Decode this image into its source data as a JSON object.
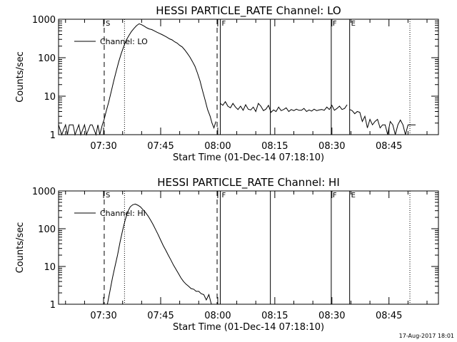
{
  "stamp": "17-Aug-2017 18:01",
  "chart_data": [
    {
      "type": "line",
      "title": "HESSI PARTICLE_RATE Channel: LO",
      "xlabel": "Start Time (01-Dec-14 07:18:10)",
      "ylabel": "Counts/sec",
      "yscale": "log",
      "ylim": [
        1,
        1000
      ],
      "yticks": [
        1,
        10,
        100,
        1000
      ],
      "ytick_labels": [
        "1",
        "10",
        "100",
        "1000"
      ],
      "xlim": [
        "07:18:10",
        "08:58:00"
      ],
      "xticks": [
        "07:30",
        "07:45",
        "08:00",
        "08:15",
        "08:30",
        "08:45"
      ],
      "legend": "Channel: LO",
      "legend_position": "top-left",
      "markers": [
        {
          "time": "07:30:10",
          "style": "dashed",
          "label": "S"
        },
        {
          "time": "07:35:30",
          "style": "dotted",
          "label": ""
        },
        {
          "time": "07:59:50",
          "style": "dashed",
          "label": ""
        },
        {
          "time": "08:00:40",
          "style": "solid",
          "label": "F"
        },
        {
          "time": "08:13:50",
          "style": "solid",
          "label": ""
        },
        {
          "time": "08:29:50",
          "style": "solid",
          "label": "F"
        },
        {
          "time": "08:34:40",
          "style": "solid",
          "label": "E"
        },
        {
          "time": "08:50:30",
          "style": "dotted",
          "label": ""
        }
      ],
      "series": [
        {
          "name": "Channel: LO",
          "segments": [
            {
              "x": [
                "07:18:10",
                "07:19:00",
                "07:20:00",
                "07:20:30",
                "07:21:00",
                "07:22:00",
                "07:22:30",
                "07:23:30",
                "07:24:00",
                "07:25:00",
                "07:25:30",
                "07:26:30",
                "07:27:00",
                "07:28:00",
                "07:28:30",
                "07:29:00",
                "07:29:40",
                "07:30:10",
                "07:30:40",
                "07:31:20",
                "07:32:00",
                "07:32:40",
                "07:33:20",
                "07:34:00",
                "07:34:40",
                "07:35:20",
                "07:36:00",
                "07:36:40",
                "07:37:20",
                "07:38:00",
                "07:38:40",
                "07:39:20",
                "07:40:00",
                "07:40:40",
                "07:41:20",
                "07:42:00",
                "07:42:40",
                "07:43:20",
                "07:44:00",
                "07:44:40",
                "07:45:20",
                "07:46:00",
                "07:46:40",
                "07:47:20",
                "07:48:00",
                "07:48:40",
                "07:49:20",
                "07:50:00",
                "07:50:40",
                "07:51:20",
                "07:52:00",
                "07:52:40",
                "07:53:20",
                "07:54:00",
                "07:54:40",
                "07:55:20",
                "07:56:00",
                "07:56:40",
                "07:57:20",
                "07:58:00",
                "07:58:30",
                "07:59:00",
                "07:59:30"
              ],
              "y": [
                1.8,
                1,
                1.8,
                1,
                1.8,
                1.8,
                1,
                1.8,
                1,
                1.8,
                1,
                1.8,
                1.8,
                1,
                1.8,
                1,
                1.8,
                2.5,
                4,
                7,
                13,
                25,
                45,
                80,
                130,
                200,
                290,
                380,
                480,
                580,
                680,
                760,
                720,
                660,
                600,
                560,
                540,
                500,
                460,
                430,
                400,
                370,
                340,
                310,
                290,
                260,
                240,
                210,
                190,
                160,
                130,
                105,
                80,
                60,
                40,
                25,
                14,
                8,
                4.5,
                3,
                2,
                1.5,
                2.2
              ]
            },
            {
              "x": [
                "08:00:40",
                "08:01:20",
                "08:02:00",
                "08:02:40",
                "08:03:20",
                "08:04:00",
                "08:04:40",
                "08:05:20",
                "08:06:00",
                "08:06:40",
                "08:07:20",
                "08:08:00",
                "08:08:40",
                "08:09:20",
                "08:10:00",
                "08:10:40",
                "08:11:20",
                "08:12:00",
                "08:12:40",
                "08:13:20",
                "08:14:00",
                "08:14:40",
                "08:15:20",
                "08:16:00",
                "08:16:40",
                "08:17:20",
                "08:18:00",
                "08:18:40",
                "08:19:20",
                "08:20:00",
                "08:20:40",
                "08:21:20",
                "08:22:00",
                "08:22:40",
                "08:23:20",
                "08:24:00",
                "08:24:40",
                "08:25:20",
                "08:26:00",
                "08:26:40",
                "08:27:20",
                "08:28:00",
                "08:28:40",
                "08:29:20",
                "08:30:00",
                "08:30:40",
                "08:31:20",
                "08:32:00",
                "08:32:40",
                "08:33:20",
                "08:34:00"
              ],
              "y": [
                6.5,
                5.8,
                7.2,
                5.5,
                5,
                6.5,
                5.2,
                4.5,
                5.5,
                4.3,
                6,
                4.6,
                4.4,
                5.2,
                4,
                6.5,
                5.5,
                4.2,
                4.6,
                5.8,
                3.8,
                4.4,
                4,
                5.2,
                4.2,
                4.5,
                5,
                4,
                4.5,
                4.2,
                4.6,
                4.3,
                4.3,
                4.8,
                4,
                4.4,
                4.1,
                4.6,
                4.2,
                4.4,
                4.5,
                4.3,
                5.2,
                4.5,
                5.8,
                4.3,
                4.8,
                5.5,
                4.5,
                4.8,
                6
              ]
            },
            {
              "x": [
                "08:34:40",
                "08:35:20",
                "08:36:00",
                "08:36:40",
                "08:37:20",
                "08:38:00",
                "08:38:40",
                "08:39:20",
                "08:40:00",
                "08:40:40",
                "08:41:20",
                "08:42:00",
                "08:42:40",
                "08:43:20",
                "08:44:00",
                "08:44:40",
                "08:45:20",
                "08:46:00",
                "08:46:40",
                "08:47:20",
                "08:48:00",
                "08:48:40",
                "08:49:20",
                "08:50:00",
                "08:50:40",
                "08:51:20",
                "08:52:00"
              ],
              "y": [
                4.5,
                4.2,
                3.5,
                4,
                3.8,
                2.2,
                3,
                1.5,
                2.5,
                1.8,
                2.2,
                2.5,
                1.5,
                1.8,
                1.8,
                1,
                2.2,
                1.8,
                1,
                1.8,
                2.4,
                1.8,
                1,
                1.8,
                1.8,
                1.8,
                1.8
              ]
            }
          ]
        }
      ]
    },
    {
      "type": "line",
      "title": "HESSI PARTICLE_RATE Channel: HI",
      "xlabel": "Start Time (01-Dec-14 07:18:10)",
      "ylabel": "Counts/sec",
      "yscale": "log",
      "ylim": [
        1,
        1000
      ],
      "yticks": [
        1,
        10,
        100,
        1000
      ],
      "ytick_labels": [
        "1",
        "10",
        "100",
        "1000"
      ],
      "xlim": [
        "07:18:10",
        "08:58:00"
      ],
      "xticks": [
        "07:30",
        "07:45",
        "08:00",
        "08:15",
        "08:30",
        "08:45"
      ],
      "legend": "Channel: HI",
      "legend_position": "top-left",
      "markers": [
        {
          "time": "07:30:10",
          "style": "dashed",
          "label": "S"
        },
        {
          "time": "07:35:30",
          "style": "dotted",
          "label": ""
        },
        {
          "time": "07:59:50",
          "style": "dashed",
          "label": ""
        },
        {
          "time": "08:00:40",
          "style": "solid",
          "label": "F"
        },
        {
          "time": "08:13:50",
          "style": "solid",
          "label": ""
        },
        {
          "time": "08:29:50",
          "style": "solid",
          "label": "F"
        },
        {
          "time": "08:34:40",
          "style": "solid",
          "label": "E"
        },
        {
          "time": "08:50:30",
          "style": "dotted",
          "label": ""
        }
      ],
      "series": [
        {
          "name": "Channel: HI",
          "segments": [
            {
              "x": [
                "07:31:00",
                "07:31:40",
                "07:32:20",
                "07:33:00",
                "07:33:40",
                "07:34:20",
                "07:35:00",
                "07:35:40",
                "07:36:20",
                "07:37:00",
                "07:37:40",
                "07:38:20",
                "07:39:00",
                "07:39:40",
                "07:40:20",
                "07:41:00",
                "07:41:40",
                "07:42:20",
                "07:43:00",
                "07:43:40",
                "07:44:20",
                "07:45:00",
                "07:45:40",
                "07:46:20",
                "07:47:00",
                "07:47:40",
                "07:48:20",
                "07:49:00",
                "07:49:40",
                "07:50:20",
                "07:51:00",
                "07:51:40",
                "07:52:20",
                "07:53:00",
                "07:53:40",
                "07:54:20",
                "07:55:00",
                "07:55:40",
                "07:56:20",
                "07:57:00",
                "07:57:40",
                "07:58:20"
              ],
              "y": [
                1,
                2.2,
                5,
                10,
                20,
                45,
                90,
                170,
                280,
                380,
                430,
                450,
                420,
                380,
                320,
                270,
                220,
                170,
                130,
                95,
                70,
                50,
                36,
                27,
                20,
                15,
                11,
                8.5,
                6.5,
                5,
                4,
                3.4,
                3,
                2.6,
                2.5,
                2.2,
                2.2,
                1.9,
                1.8,
                1.3,
                1.8,
                1
              ]
            }
          ]
        }
      ]
    }
  ]
}
